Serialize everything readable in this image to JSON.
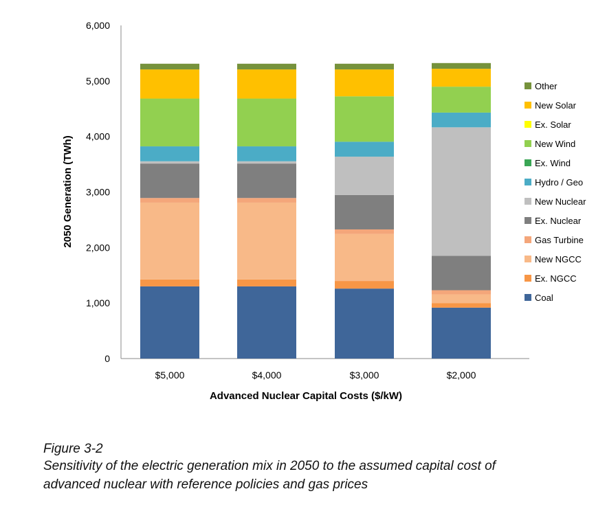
{
  "chart_data": {
    "type": "stacked-bar",
    "title": "",
    "xlabel": "Advanced Nuclear Capital Costs ($/kW)",
    "ylabel": "2050 Generation (TWh)",
    "ylim": [
      0,
      6000
    ],
    "yticks": [
      "0",
      "1,000",
      "2,000",
      "3,000",
      "4,000",
      "5,000",
      "6,000"
    ],
    "grid": false,
    "legend_position": "right",
    "categories": [
      "$5,000",
      "$4,000",
      "$3,000",
      "$2,000"
    ],
    "series": [
      {
        "name": "Coal",
        "color": "#3f6699",
        "values": [
          1300,
          1300,
          1260,
          917
        ]
      },
      {
        "name": "Ex. NGCC",
        "color": "#f79646",
        "values": [
          125,
          125,
          137,
          83
        ]
      },
      {
        "name": "New NGCC",
        "color": "#f8b988",
        "values": [
          1384,
          1384,
          847,
          157
        ]
      },
      {
        "name": "Gas Turbine",
        "color": "#f4a67a",
        "values": [
          83,
          83,
          82,
          74
        ]
      },
      {
        "name": "Ex. Nuclear",
        "color": "#7f7f7f",
        "values": [
          620,
          620,
          620,
          620
        ]
      },
      {
        "name": "New Nuclear",
        "color": "#bfbfbf",
        "values": [
          41,
          41,
          690,
          2314
        ]
      },
      {
        "name": "Hydro / Geo",
        "color": "#4bacc6",
        "values": [
          269,
          269,
          269,
          265
        ]
      },
      {
        "name": "Ex. Wind",
        "color": "#3aa655",
        "values": [
          0,
          0,
          0,
          0
        ]
      },
      {
        "name": "New Wind",
        "color": "#92d050",
        "values": [
          860,
          860,
          818,
          467
        ]
      },
      {
        "name": "Ex. Solar",
        "color": "#ffff00",
        "values": [
          0,
          0,
          0,
          0
        ]
      },
      {
        "name": "New Solar",
        "color": "#ffc000",
        "values": [
          525,
          525,
          484,
          322
        ]
      },
      {
        "name": "Other",
        "color": "#76923c",
        "values": [
          103,
          103,
          103,
          103
        ]
      }
    ]
  },
  "caption": {
    "figure_label": "Figure 3-2",
    "line1": "Sensitivity of the electric generation mix in 2050 to the assumed capital cost of",
    "line2": "advanced nuclear with reference policies and gas prices"
  }
}
